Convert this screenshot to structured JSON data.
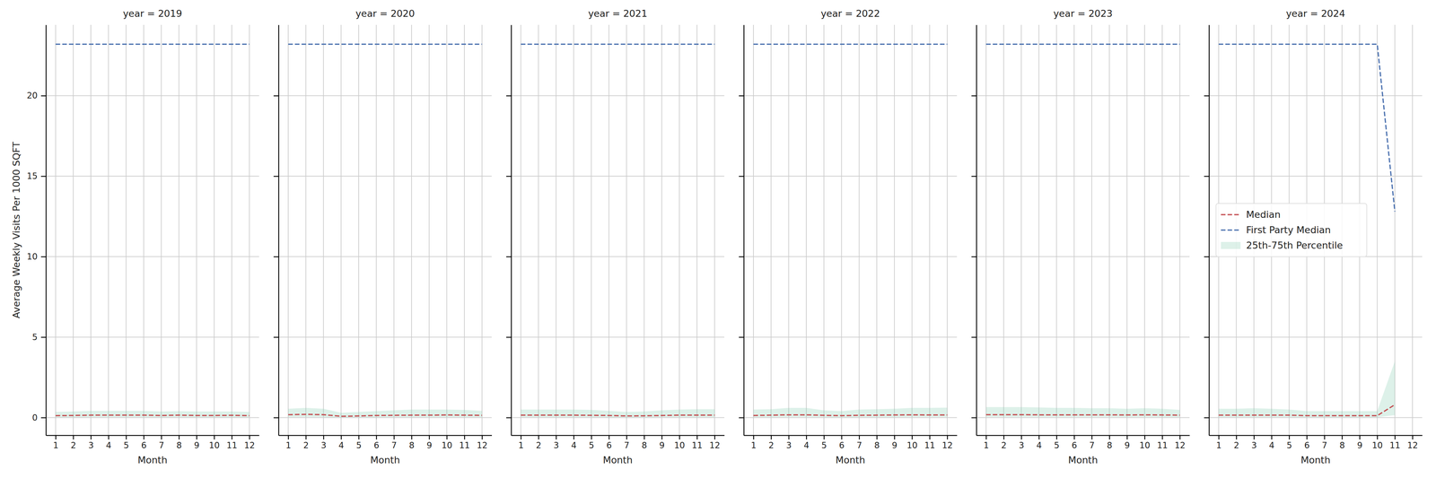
{
  "chart_data": [
    {
      "type": "line",
      "title": "year = 2019",
      "xlabel": "Month",
      "ylabel": "Average Weekly Visits Per 1000 SQFT",
      "x": [
        1,
        2,
        3,
        4,
        5,
        6,
        7,
        8,
        9,
        10,
        11,
        12
      ],
      "series": [
        {
          "name": "Median",
          "color": "#c44e52",
          "line_style": "dashed",
          "values": [
            0.12,
            0.13,
            0.15,
            0.15,
            0.15,
            0.15,
            0.13,
            0.15,
            0.13,
            0.13,
            0.14,
            0.12
          ]
        },
        {
          "name": "First Party Median",
          "color": "#4c72b0",
          "line_style": "dashed",
          "values": [
            23.2,
            23.2,
            23.2,
            23.2,
            23.2,
            23.2,
            23.2,
            23.2,
            23.2,
            23.2,
            23.2,
            23.2
          ]
        },
        {
          "name": "25th-75th Percentile",
          "type": "area",
          "color": "#8fd1b5",
          "values": [
            0.35,
            0.38,
            0.42,
            0.42,
            0.42,
            0.42,
            0.38,
            0.4,
            0.38,
            0.38,
            0.38,
            0.35
          ],
          "base": [
            0.02,
            0.02,
            0.03,
            0.03,
            0.03,
            0.03,
            0.02,
            0.03,
            0.02,
            0.02,
            0.02,
            0.02
          ]
        }
      ],
      "xlim": [
        0.45,
        12.55
      ],
      "ylim": [
        -1.1,
        24.4
      ],
      "xticks": [
        1,
        2,
        3,
        4,
        5,
        6,
        7,
        8,
        9,
        10,
        11,
        12
      ],
      "yticks": [
        0,
        5,
        10,
        15,
        20
      ],
      "grid": true,
      "tick_labels": true
    },
    {
      "type": "line",
      "title": "year = 2020",
      "xlabel": "Month",
      "x": [
        1,
        2,
        3,
        4,
        5,
        6,
        7,
        8,
        9,
        10,
        11,
        12
      ],
      "series": [
        {
          "name": "Median",
          "color": "#c44e52",
          "line_style": "dashed",
          "values": [
            0.18,
            0.2,
            0.18,
            0.08,
            0.1,
            0.13,
            0.14,
            0.15,
            0.15,
            0.16,
            0.15,
            0.14
          ]
        },
        {
          "name": "First Party Median",
          "color": "#4c72b0",
          "line_style": "dashed",
          "values": [
            23.2,
            23.2,
            23.2,
            23.2,
            23.2,
            23.2,
            23.2,
            23.2,
            23.2,
            23.2,
            23.2,
            23.2
          ]
        },
        {
          "name": "25th-75th Percentile",
          "type": "area",
          "color": "#8fd1b5",
          "values": [
            0.55,
            0.6,
            0.55,
            0.3,
            0.35,
            0.4,
            0.45,
            0.5,
            0.5,
            0.5,
            0.48,
            0.42
          ],
          "base": [
            0.03,
            0.04,
            0.03,
            0.01,
            0.02,
            0.02,
            0.03,
            0.03,
            0.03,
            0.03,
            0.03,
            0.03
          ]
        }
      ],
      "xlim": [
        0.45,
        12.55
      ],
      "ylim": [
        -1.1,
        24.4
      ],
      "xticks": [
        1,
        2,
        3,
        4,
        5,
        6,
        7,
        8,
        9,
        10,
        11,
        12
      ],
      "yticks": [
        0,
        5,
        10,
        15,
        20
      ],
      "grid": true,
      "tick_labels": "x"
    },
    {
      "type": "line",
      "title": "year = 2021",
      "xlabel": "Month",
      "x": [
        1,
        2,
        3,
        4,
        5,
        6,
        7,
        8,
        9,
        10,
        11,
        12
      ],
      "series": [
        {
          "name": "Median",
          "color": "#c44e52",
          "line_style": "dashed",
          "values": [
            0.15,
            0.15,
            0.15,
            0.15,
            0.14,
            0.13,
            0.1,
            0.11,
            0.13,
            0.15,
            0.15,
            0.15
          ]
        },
        {
          "name": "First Party Median",
          "color": "#4c72b0",
          "line_style": "dashed",
          "values": [
            23.2,
            23.2,
            23.2,
            23.2,
            23.2,
            23.2,
            23.2,
            23.2,
            23.2,
            23.2,
            23.2,
            23.2
          ]
        },
        {
          "name": "25th-75th Percentile",
          "type": "area",
          "color": "#8fd1b5",
          "values": [
            0.5,
            0.5,
            0.5,
            0.5,
            0.48,
            0.42,
            0.35,
            0.38,
            0.45,
            0.5,
            0.52,
            0.52
          ],
          "base": [
            0.03,
            0.03,
            0.03,
            0.03,
            0.03,
            0.02,
            0.02,
            0.02,
            0.03,
            0.03,
            0.03,
            0.03
          ]
        }
      ],
      "xlim": [
        0.45,
        12.55
      ],
      "ylim": [
        -1.1,
        24.4
      ],
      "xticks": [
        1,
        2,
        3,
        4,
        5,
        6,
        7,
        8,
        9,
        10,
        11,
        12
      ],
      "yticks": [
        0,
        5,
        10,
        15,
        20
      ],
      "grid": true,
      "tick_labels": "x"
    },
    {
      "type": "line",
      "title": "year = 2022",
      "xlabel": "Month",
      "x": [
        1,
        2,
        3,
        4,
        5,
        6,
        7,
        8,
        9,
        10,
        11,
        12
      ],
      "series": [
        {
          "name": "Median",
          "color": "#c44e52",
          "line_style": "dashed",
          "values": [
            0.13,
            0.15,
            0.17,
            0.17,
            0.14,
            0.12,
            0.14,
            0.15,
            0.16,
            0.17,
            0.16,
            0.16
          ]
        },
        {
          "name": "First Party Median",
          "color": "#4c72b0",
          "line_style": "dashed",
          "values": [
            23.2,
            23.2,
            23.2,
            23.2,
            23.2,
            23.2,
            23.2,
            23.2,
            23.2,
            23.2,
            23.2,
            23.2
          ]
        },
        {
          "name": "25th-75th Percentile",
          "type": "area",
          "color": "#8fd1b5",
          "values": [
            0.5,
            0.52,
            0.6,
            0.6,
            0.45,
            0.4,
            0.5,
            0.52,
            0.55,
            0.6,
            0.6,
            0.62
          ],
          "base": [
            0.03,
            0.03,
            0.04,
            0.04,
            0.03,
            0.02,
            0.03,
            0.03,
            0.03,
            0.04,
            0.04,
            0.04
          ]
        }
      ],
      "xlim": [
        0.45,
        12.55
      ],
      "ylim": [
        -1.1,
        24.4
      ],
      "xticks": [
        1,
        2,
        3,
        4,
        5,
        6,
        7,
        8,
        9,
        10,
        11,
        12
      ],
      "yticks": [
        0,
        5,
        10,
        15,
        20
      ],
      "grid": true,
      "tick_labels": "x"
    },
    {
      "type": "line",
      "title": "year = 2023",
      "xlabel": "Month",
      "x": [
        1,
        2,
        3,
        4,
        5,
        6,
        7,
        8,
        9,
        10,
        11,
        12
      ],
      "series": [
        {
          "name": "Median",
          "color": "#c44e52",
          "line_style": "dashed",
          "values": [
            0.18,
            0.18,
            0.18,
            0.17,
            0.17,
            0.17,
            0.17,
            0.17,
            0.16,
            0.17,
            0.16,
            0.15
          ]
        },
        {
          "name": "First Party Median",
          "color": "#4c72b0",
          "line_style": "dashed",
          "values": [
            23.2,
            23.2,
            23.2,
            23.2,
            23.2,
            23.2,
            23.2,
            23.2,
            23.2,
            23.2,
            23.2,
            23.2
          ]
        },
        {
          "name": "25th-75th Percentile",
          "type": "area",
          "color": "#8fd1b5",
          "values": [
            0.65,
            0.65,
            0.65,
            0.63,
            0.6,
            0.6,
            0.58,
            0.58,
            0.55,
            0.58,
            0.55,
            0.48
          ],
          "base": [
            0.04,
            0.04,
            0.04,
            0.04,
            0.04,
            0.04,
            0.04,
            0.04,
            0.03,
            0.04,
            0.03,
            0.03
          ]
        }
      ],
      "xlim": [
        0.45,
        12.55
      ],
      "ylim": [
        -1.1,
        24.4
      ],
      "xticks": [
        1,
        2,
        3,
        4,
        5,
        6,
        7,
        8,
        9,
        10,
        11,
        12
      ],
      "yticks": [
        0,
        5,
        10,
        15,
        20
      ],
      "grid": true,
      "tick_labels": "x"
    },
    {
      "type": "line",
      "title": "year = 2024",
      "xlabel": "Month",
      "x": [
        1,
        2,
        3,
        4,
        5,
        6,
        7,
        8,
        9,
        10,
        11
      ],
      "series": [
        {
          "name": "Median",
          "color": "#c44e52",
          "line_style": "dashed",
          "values": [
            0.15,
            0.15,
            0.15,
            0.15,
            0.15,
            0.12,
            0.12,
            0.12,
            0.12,
            0.12,
            0.8
          ]
        },
        {
          "name": "First Party Median",
          "color": "#4c72b0",
          "line_style": "dashed",
          "values": [
            23.2,
            23.2,
            23.2,
            23.2,
            23.2,
            23.2,
            23.2,
            23.2,
            23.2,
            23.2,
            12.8
          ]
        },
        {
          "name": "25th-75th Percentile",
          "type": "area",
          "color": "#8fd1b5",
          "values": [
            0.55,
            0.55,
            0.58,
            0.55,
            0.5,
            0.4,
            0.4,
            0.4,
            0.4,
            0.4,
            3.5
          ],
          "base": [
            0.03,
            0.03,
            0.03,
            0.03,
            0.03,
            0.02,
            0.02,
            0.02,
            0.02,
            0.02,
            0.15
          ]
        }
      ],
      "xlim": [
        0.45,
        12.55
      ],
      "ylim": [
        -1.1,
        24.4
      ],
      "xticks": [
        1,
        2,
        3,
        4,
        5,
        6,
        7,
        8,
        9,
        10,
        11,
        12
      ],
      "yticks": [
        0,
        5,
        10,
        15,
        20
      ],
      "grid": true,
      "tick_labels": "x",
      "legend": "center left"
    }
  ]
}
